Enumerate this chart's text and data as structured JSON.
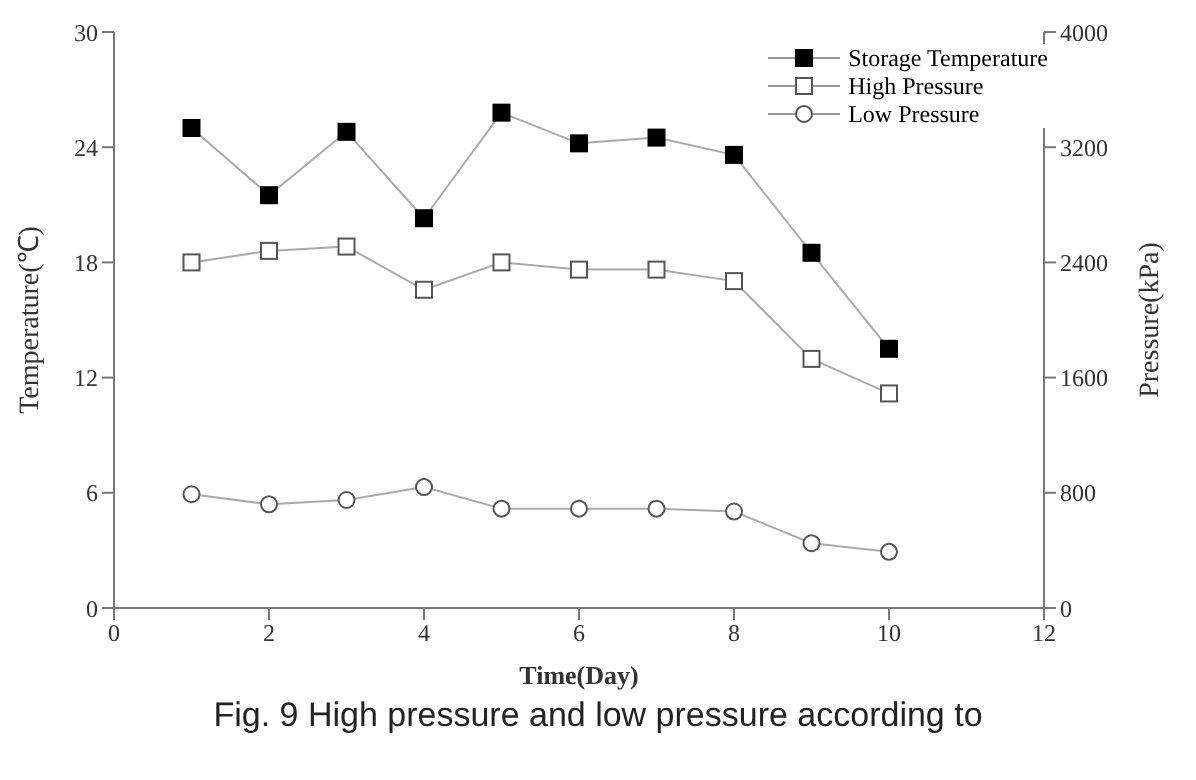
{
  "chart_data": {
    "type": "line",
    "xlabel": "Time(Day)",
    "ylabel": "Temperature(℃)",
    "y2label": "Pressure(kPa)",
    "x": [
      1,
      2,
      3,
      4,
      5,
      6,
      7,
      8,
      9,
      10
    ],
    "series": [
      {
        "name": "Storage Temperature",
        "color": "#000000",
        "marker": "square",
        "values": [
          25.0,
          21.5,
          24.8,
          20.3,
          25.8,
          24.2,
          24.5,
          23.6,
          18.5,
          13.5
        ]
      },
      {
        "name": "High Pressure",
        "color": "#555555",
        "marker": "square",
        "axis": "y2",
        "values": [
          2400,
          2480,
          2510,
          2210,
          2400,
          2350,
          2350,
          2270,
          1730,
          1490
        ]
      },
      {
        "name": "Low Pressure",
        "color": "#555555",
        "marker": "circle",
        "axis": "y2",
        "values": [
          790,
          720,
          750,
          840,
          690,
          690,
          690,
          670,
          450,
          390
        ]
      }
    ],
    "xlim": [
      0,
      12
    ],
    "xticks": [
      0,
      2,
      4,
      6,
      8,
      10,
      12
    ],
    "ylim": [
      0,
      30
    ],
    "yticks": [
      0,
      6,
      12,
      18,
      24,
      30
    ],
    "y2lim": [
      0,
      4000
    ],
    "y2ticks": [
      0,
      800,
      1600,
      2400,
      3200,
      4000
    ],
    "grid": false,
    "legend": "top right",
    "line_style": "solid",
    "annotations": [
      "Fig. 9 High pressure and low pressure according to"
    ]
  }
}
